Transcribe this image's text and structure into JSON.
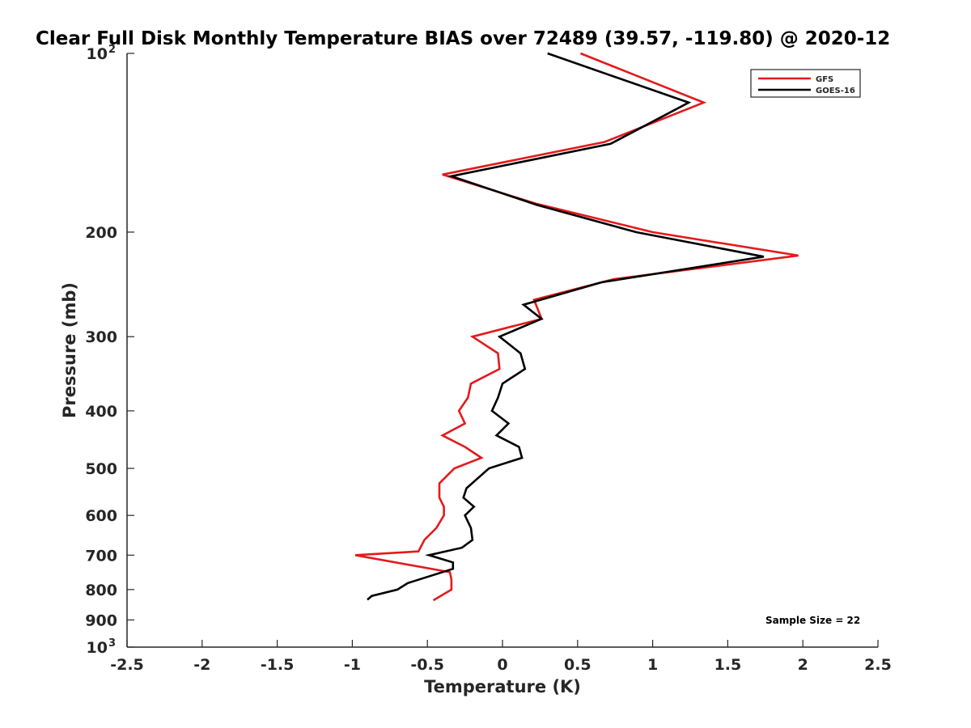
{
  "chart_data": {
    "type": "line",
    "title": "Clear Full Disk Monthly Temperature BIAS over 72489 (39.57, -119.80) @ 2020-12",
    "xlabel": "Temperature (K)",
    "ylabel": "Pressure (mb)",
    "xlim": [
      -2.5,
      2.5
    ],
    "ylim": [
      100,
      1000
    ],
    "yscale": "log",
    "yreversed": true,
    "x_ticks": [
      "-2.5",
      "-2",
      "-1.5",
      "-1",
      "-0.5",
      "0",
      "0.5",
      "1",
      "1.5",
      "2",
      "2.5"
    ],
    "y_ticks": [
      {
        "value": 100,
        "base": "10",
        "exp": "2"
      },
      {
        "value": 200,
        "label": "200"
      },
      {
        "value": 300,
        "label": "300"
      },
      {
        "value": 400,
        "label": "400"
      },
      {
        "value": 500,
        "label": "500"
      },
      {
        "value": 600,
        "label": "600"
      },
      {
        "value": 700,
        "label": "700"
      },
      {
        "value": 800,
        "label": "800"
      },
      {
        "value": 900,
        "label": "900"
      },
      {
        "value": 1000,
        "base": "10",
        "exp": "3"
      }
    ],
    "legend_position": "top-right",
    "annotation": "Sample Size = 22",
    "series": [
      {
        "name": "GFS",
        "color": "#e41a1c",
        "points": [
          [
            0.52,
            100
          ],
          [
            1.34,
            121
          ],
          [
            0.68,
            141
          ],
          [
            -0.4,
            160
          ],
          [
            0.22,
            179
          ],
          [
            1.0,
            200
          ],
          [
            1.97,
            219
          ],
          [
            0.74,
            240
          ],
          [
            0.21,
            260
          ],
          [
            0.26,
            280
          ],
          [
            -0.2,
            300
          ],
          [
            -0.03,
            320
          ],
          [
            -0.02,
            340
          ],
          [
            -0.21,
            360
          ],
          [
            -0.23,
            380
          ],
          [
            -0.29,
            400
          ],
          [
            -0.25,
            420
          ],
          [
            -0.4,
            440
          ],
          [
            -0.25,
            460
          ],
          [
            -0.14,
            480
          ],
          [
            -0.32,
            500
          ],
          [
            -0.42,
            530
          ],
          [
            -0.42,
            560
          ],
          [
            -0.39,
            580
          ],
          [
            -0.39,
            600
          ],
          [
            -0.44,
            630
          ],
          [
            -0.52,
            660
          ],
          [
            -0.56,
            690
          ],
          [
            -0.98,
            700
          ],
          [
            -0.35,
            748
          ],
          [
            -0.34,
            770
          ],
          [
            -0.34,
            800
          ],
          [
            -0.46,
            834
          ]
        ]
      },
      {
        "name": "GOES-16",
        "color": "#000000",
        "points": [
          [
            0.3,
            100
          ],
          [
            1.24,
            121
          ],
          [
            0.72,
            142
          ],
          [
            -0.34,
            161
          ],
          [
            0.23,
            180
          ],
          [
            0.89,
            200
          ],
          [
            1.74,
            220
          ],
          [
            0.66,
            243
          ],
          [
            0.14,
            265
          ],
          [
            0.26,
            280
          ],
          [
            -0.02,
            300
          ],
          [
            0.12,
            320
          ],
          [
            0.15,
            340
          ],
          [
            0.0,
            360
          ],
          [
            -0.03,
            380
          ],
          [
            -0.07,
            400
          ],
          [
            0.04,
            420
          ],
          [
            -0.04,
            440
          ],
          [
            0.11,
            460
          ],
          [
            0.13,
            480
          ],
          [
            -0.09,
            500
          ],
          [
            -0.24,
            540
          ],
          [
            -0.26,
            560
          ],
          [
            -0.19,
            580
          ],
          [
            -0.25,
            600
          ],
          [
            -0.21,
            630
          ],
          [
            -0.2,
            660
          ],
          [
            -0.27,
            680
          ],
          [
            -0.49,
            700
          ],
          [
            -0.33,
            720
          ],
          [
            -0.33,
            738
          ],
          [
            -0.63,
            780
          ],
          [
            -0.7,
            800
          ],
          [
            -0.87,
            820
          ],
          [
            -0.9,
            832
          ]
        ]
      }
    ]
  }
}
